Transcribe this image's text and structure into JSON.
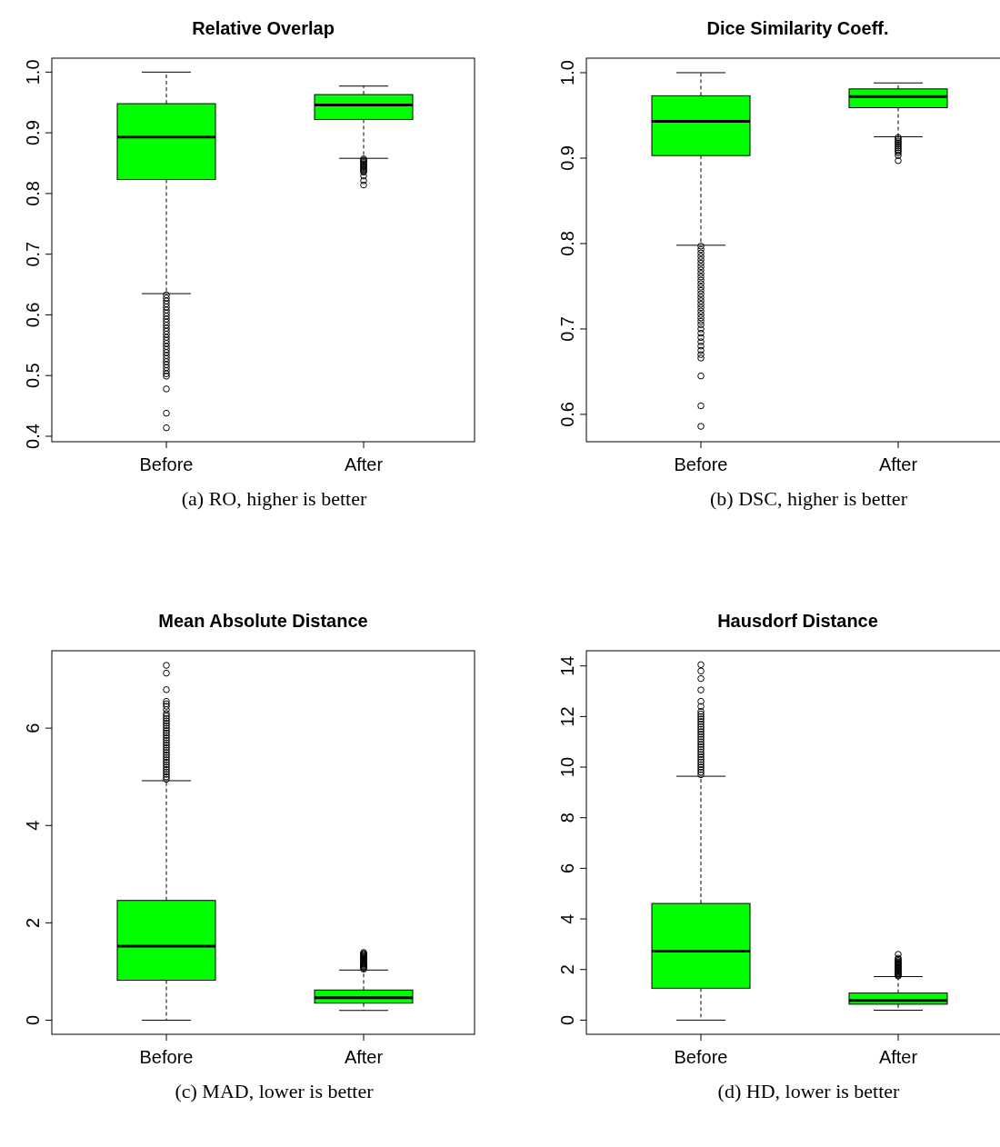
{
  "chart_data": [
    {
      "type": "box",
      "title": "Relative Overlap",
      "categories": [
        "Before",
        "After"
      ],
      "color": "#00ff00",
      "ylim": [
        0.391,
        1.023
      ],
      "yticks": [
        0.4,
        0.5,
        0.6,
        0.7,
        0.8,
        0.9,
        {
          "value": 1,
          "label": "1.0"
        }
      ],
      "annotations": [
        "(a) RO, higher is better"
      ],
      "boxes": [
        {
          "low": 0.635,
          "q1": 0.823,
          "median": 0.893,
          "q3": 0.948,
          "high": 1.0,
          "outliers": [
            0.633,
            0.628,
            0.623,
            0.618,
            0.613,
            0.608,
            0.603,
            0.598,
            0.593,
            0.588,
            0.583,
            0.578,
            0.573,
            0.568,
            0.563,
            0.558,
            0.553,
            0.548,
            0.543,
            0.538,
            0.533,
            0.528,
            0.523,
            0.518,
            0.513,
            0.508,
            0.503,
            0.499,
            0.478,
            0.438,
            0.414
          ]
        },
        {
          "low": 0.858,
          "q1": 0.922,
          "median": 0.946,
          "q3": 0.963,
          "high": 0.977,
          "outliers": [
            0.857,
            0.855,
            0.853,
            0.851,
            0.849,
            0.847,
            0.845,
            0.843,
            0.841,
            0.839,
            0.837,
            0.835,
            0.829,
            0.821,
            0.814
          ]
        }
      ]
    },
    {
      "type": "box",
      "title": "Dice Similarity Coeff.",
      "categories": [
        "Before",
        "After"
      ],
      "color": "#00ff00",
      "ylim": [
        0.568,
        1.017
      ],
      "yticks": [
        0.6,
        0.7,
        0.8,
        0.9,
        {
          "value": 1,
          "label": "1.0"
        }
      ],
      "annotations": [
        "(b) DSC, higher is better"
      ],
      "boxes": [
        {
          "low": 0.798,
          "q1": 0.903,
          "median": 0.943,
          "q3": 0.973,
          "high": 1.0,
          "outliers": [
            0.797,
            0.793,
            0.789,
            0.785,
            0.781,
            0.777,
            0.773,
            0.769,
            0.765,
            0.761,
            0.757,
            0.753,
            0.749,
            0.745,
            0.741,
            0.737,
            0.733,
            0.729,
            0.725,
            0.721,
            0.717,
            0.713,
            0.709,
            0.705,
            0.7,
            0.695,
            0.69,
            0.685,
            0.68,
            0.675,
            0.67,
            0.666,
            0.645,
            0.61,
            0.586
          ]
        },
        {
          "low": 0.925,
          "q1": 0.959,
          "median": 0.972,
          "q3": 0.981,
          "high": 0.988,
          "outliers": [
            0.924,
            0.922,
            0.92,
            0.918,
            0.916,
            0.914,
            0.912,
            0.91,
            0.908,
            0.906,
            0.903,
            0.897
          ]
        }
      ]
    },
    {
      "type": "box",
      "title": "Mean Absolute Distance",
      "categories": [
        "Before",
        "After"
      ],
      "color": "#00ff00",
      "ylim": [
        -0.29,
        7.59
      ],
      "yticks": [
        0,
        2,
        4,
        6
      ],
      "annotations": [
        "(c) MAD, lower is better"
      ],
      "boxes": [
        {
          "low": 0,
          "q1": 0.82,
          "median": 1.52,
          "q3": 2.46,
          "high": 4.92,
          "outliers": [
            4.95,
            5.0,
            5.05,
            5.1,
            5.15,
            5.2,
            5.25,
            5.3,
            5.35,
            5.4,
            5.45,
            5.5,
            5.55,
            5.6,
            5.65,
            5.7,
            5.75,
            5.8,
            5.85,
            5.9,
            5.95,
            6.0,
            6.05,
            6.1,
            6.15,
            6.2,
            6.25,
            6.3,
            6.38,
            6.45,
            6.5,
            6.55,
            6.79,
            7.13,
            7.29
          ]
        },
        {
          "low": 0.2,
          "q1": 0.35,
          "median": 0.46,
          "q3": 0.62,
          "high": 1.03,
          "outliers": [
            1.05,
            1.07,
            1.09,
            1.11,
            1.13,
            1.15,
            1.17,
            1.19,
            1.21,
            1.23,
            1.25,
            1.27,
            1.29,
            1.31,
            1.33,
            1.35,
            1.37,
            1.39
          ]
        }
      ]
    },
    {
      "type": "box",
      "title": "Hausdorf Distance",
      "categories": [
        "Before",
        "After"
      ],
      "color": "#00ff00",
      "ylim": [
        -0.56,
        14.6
      ],
      "yticks": [
        0,
        2,
        4,
        6,
        8,
        10,
        12,
        14
      ],
      "annotations": [
        "(d) HD, lower is better"
      ],
      "boxes": [
        {
          "low": 0,
          "q1": 1.26,
          "median": 2.73,
          "q3": 4.61,
          "high": 9.64,
          "outliers": [
            9.7,
            9.8,
            9.9,
            10.0,
            10.1,
            10.2,
            10.3,
            10.4,
            10.5,
            10.6,
            10.7,
            10.8,
            10.9,
            11.0,
            11.1,
            11.2,
            11.3,
            11.4,
            11.5,
            11.6,
            11.7,
            11.8,
            11.9,
            12.0,
            12.1,
            12.2,
            12.4,
            12.6,
            13.05,
            13.5,
            13.8,
            14.05
          ]
        },
        {
          "low": 0.39,
          "q1": 0.63,
          "median": 0.78,
          "q3": 1.07,
          "high": 1.72,
          "outliers": [
            1.74,
            1.78,
            1.82,
            1.86,
            1.9,
            1.94,
            1.98,
            2.02,
            2.06,
            2.1,
            2.14,
            2.18,
            2.22,
            2.26,
            2.3,
            2.35,
            2.4,
            2.45,
            2.6
          ]
        }
      ]
    }
  ]
}
